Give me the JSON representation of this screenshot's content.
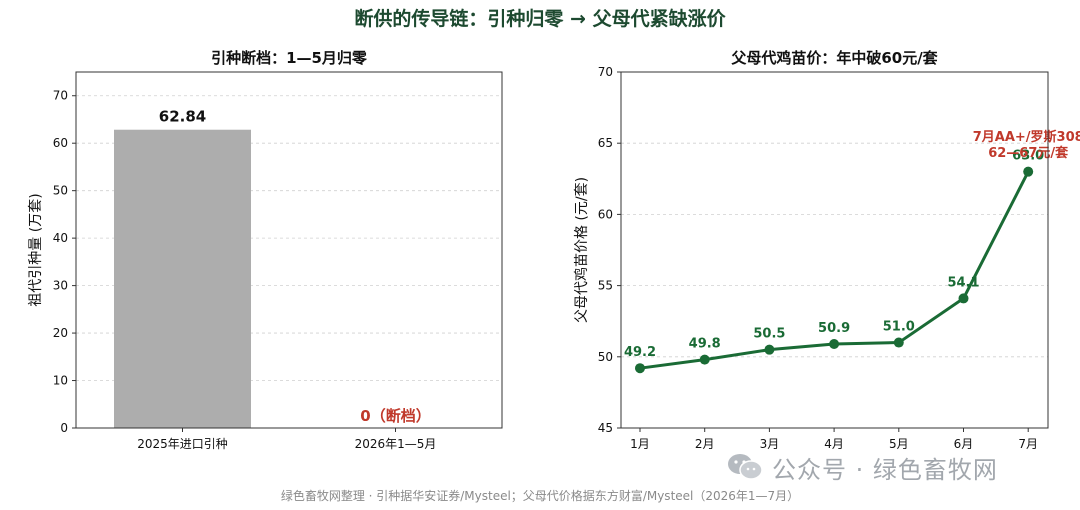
{
  "suptitle": "断供的传导链：引种归零 → 父母代紧缺涨价",
  "footer": "绿色畜牧网整理 · 引种据华安证券/Mysteel；父母代价格据东方财富/Mysteel（2026年1—7月）",
  "watermark": {
    "text": "公众号 · 绿色畜牧网",
    "icon": "wechat-icon"
  },
  "colors": {
    "bar": "#adadad",
    "line": "#1a6b35",
    "accent_red": "#c0392b",
    "title_green": "#1d4a30"
  },
  "chart_data": [
    {
      "type": "bar",
      "title": "引种断档：1—5月归零",
      "ylabel": "祖代引种量 (万套)",
      "xlabel": "",
      "categories": [
        "2025年进口引种",
        "2026年1—5月"
      ],
      "values": [
        62.84,
        0
      ],
      "data_labels": [
        "62.84",
        "0（断档）"
      ],
      "ylim": [
        0,
        75
      ],
      "yticks": [
        0,
        10,
        20,
        30,
        40,
        50,
        60,
        70
      ],
      "grid": true
    },
    {
      "type": "line",
      "title": "父母代鸡苗价：年中破60元/套",
      "ylabel": "父母代鸡苗价格 (元/套)",
      "xlabel": "",
      "x": [
        "1月",
        "2月",
        "3月",
        "4月",
        "5月",
        "6月",
        "7月"
      ],
      "series": [
        {
          "values": [
            49.2,
            49.8,
            50.5,
            50.9,
            51.0,
            54.1,
            63.0
          ],
          "labels": [
            "49.2",
            "49.8",
            "50.5",
            "50.9",
            "51.0",
            "54.1",
            "63.0"
          ]
        }
      ],
      "ylim": [
        45,
        70
      ],
      "yticks": [
        45,
        50,
        55,
        60,
        65,
        70
      ],
      "annotation": {
        "x": "7月",
        "lines": [
          "7月AA+/罗斯308",
          "62—67元/套"
        ]
      },
      "grid": true
    }
  ]
}
